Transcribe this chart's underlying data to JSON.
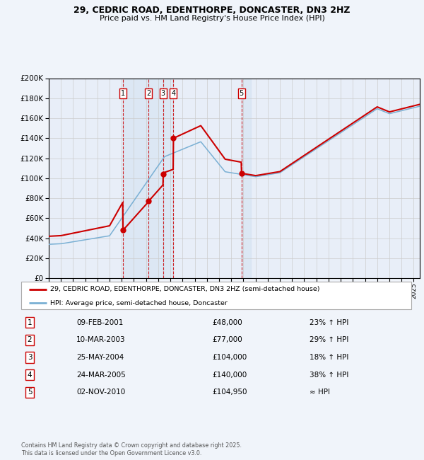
{
  "title": "29, CEDRIC ROAD, EDENTHORPE, DONCASTER, DN3 2HZ",
  "subtitle": "Price paid vs. HM Land Registry's House Price Index (HPI)",
  "legend_line1": "29, CEDRIC ROAD, EDENTHORPE, DONCASTER, DN3 2HZ (semi-detached house)",
  "legend_line2": "HPI: Average price, semi-detached house, Doncaster",
  "footer": "Contains HM Land Registry data © Crown copyright and database right 2025.\nThis data is licensed under the Open Government Licence v3.0.",
  "transactions": [
    {
      "num": 1,
      "date": "09-FEB-2001",
      "price": "£48,000",
      "hpi": "23% ↑ HPI",
      "year_float": 2001.1
    },
    {
      "num": 2,
      "date": "10-MAR-2003",
      "price": "£77,000",
      "hpi": "29% ↑ HPI",
      "year_float": 2003.2
    },
    {
      "num": 3,
      "date": "25-MAY-2004",
      "price": "£104,000",
      "hpi": "18% ↑ HPI",
      "year_float": 2004.4
    },
    {
      "num": 4,
      "date": "24-MAR-2005",
      "price": "£140,000",
      "hpi": "38% ↑ HPI",
      "year_float": 2005.25
    },
    {
      "num": 5,
      "date": "02-NOV-2010",
      "price": "£104,950",
      "hpi": "≈ HPI",
      "year_float": 2010.84
    }
  ],
  "red_color": "#cc0000",
  "blue_color": "#7ab0d4",
  "vline_color": "#cc0000",
  "shade_color": "#ccddf0",
  "grid_color": "#cccccc",
  "bg_color": "#f0f4fa",
  "plot_bg": "#e8eef8",
  "ylim": [
    0,
    200000
  ],
  "xlim_start": 1995.0,
  "xlim_end": 2025.5
}
